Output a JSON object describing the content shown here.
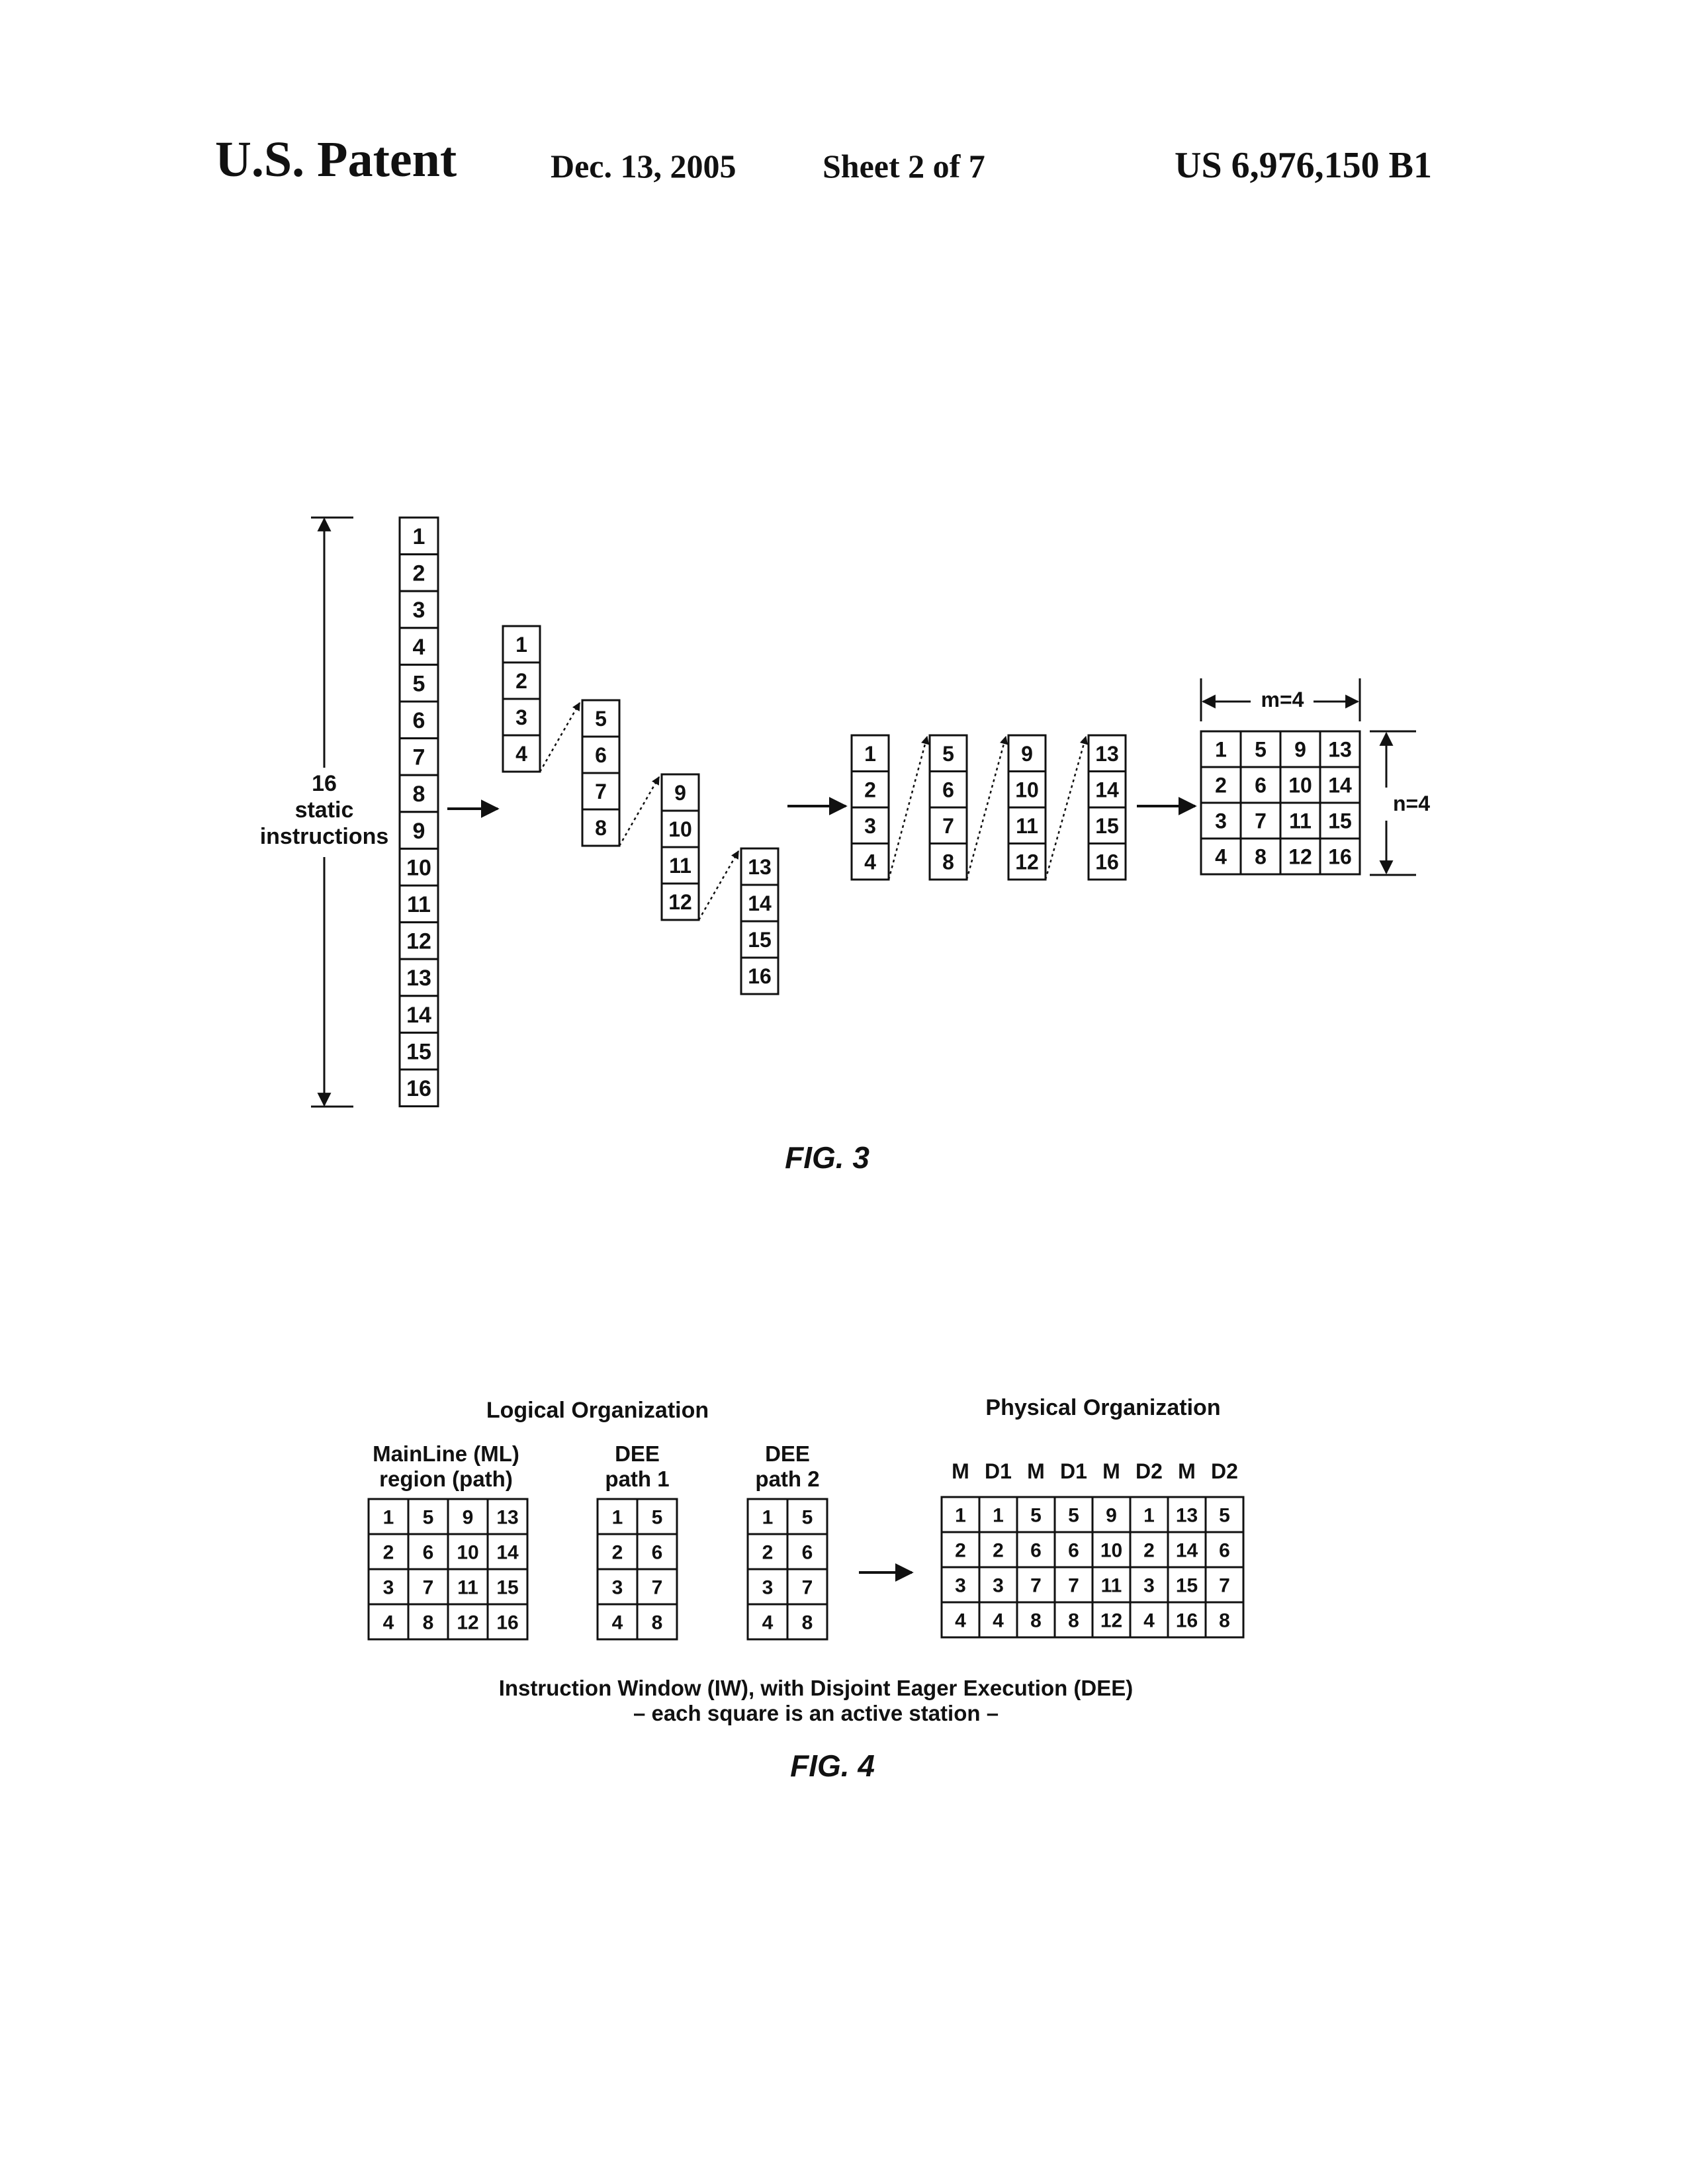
{
  "header": {
    "patent": "U.S. Patent",
    "date": "Dec. 13, 2005",
    "sheet": "Sheet 2 of 7",
    "number": "US 6,976,150 B1"
  },
  "fig3": {
    "caption": "FIG. 3",
    "left_label_line1": "16",
    "left_label_line2": "static",
    "left_label_line3": "instructions",
    "static_column": [
      "1",
      "2",
      "3",
      "4",
      "5",
      "6",
      "7",
      "8",
      "9",
      "10",
      "11",
      "12",
      "13",
      "14",
      "15",
      "16"
    ],
    "staggered_groups": [
      [
        "1",
        "2",
        "3",
        "4"
      ],
      [
        "5",
        "6",
        "7",
        "8"
      ],
      [
        "9",
        "10",
        "11",
        "12"
      ],
      [
        "13",
        "14",
        "15",
        "16"
      ]
    ],
    "aligned_groups": [
      [
        "1",
        "2",
        "3",
        "4"
      ],
      [
        "5",
        "6",
        "7",
        "8"
      ],
      [
        "9",
        "10",
        "11",
        "12"
      ],
      [
        "13",
        "14",
        "15",
        "16"
      ]
    ],
    "matrix": [
      [
        "1",
        "5",
        "9",
        "13"
      ],
      [
        "2",
        "6",
        "10",
        "14"
      ],
      [
        "3",
        "7",
        "11",
        "15"
      ],
      [
        "4",
        "8",
        "12",
        "16"
      ]
    ],
    "m_label": "m=4",
    "n_label": "n=4"
  },
  "fig4": {
    "caption": "FIG. 4",
    "logical_title": "Logical Organization",
    "physical_title": "Physical Organization",
    "mainline_label_1": "MainLine (ML)",
    "mainline_label_2": "region (path)",
    "dee1_label_1": "DEE",
    "dee1_label_2": "path 1",
    "dee2_label_1": "DEE",
    "dee2_label_2": "path 2",
    "mainline_grid": [
      [
        "1",
        "5",
        "9",
        "13"
      ],
      [
        "2",
        "6",
        "10",
        "14"
      ],
      [
        "3",
        "7",
        "11",
        "15"
      ],
      [
        "4",
        "8",
        "12",
        "16"
      ]
    ],
    "dee1_grid": [
      [
        "1",
        "5"
      ],
      [
        "2",
        "6"
      ],
      [
        "3",
        "7"
      ],
      [
        "4",
        "8"
      ]
    ],
    "dee2_grid": [
      [
        "1",
        "5"
      ],
      [
        "2",
        "6"
      ],
      [
        "3",
        "7"
      ],
      [
        "4",
        "8"
      ]
    ],
    "physical_headers": [
      "M",
      "D1",
      "M",
      "D1",
      "M",
      "D2",
      "M",
      "D2"
    ],
    "physical_grid": [
      [
        "1",
        "1",
        "5",
        "5",
        "9",
        "1",
        "13",
        "5"
      ],
      [
        "2",
        "2",
        "6",
        "6",
        "10",
        "2",
        "14",
        "6"
      ],
      [
        "3",
        "3",
        "7",
        "7",
        "11",
        "3",
        "15",
        "7"
      ],
      [
        "4",
        "4",
        "8",
        "8",
        "12",
        "4",
        "16",
        "8"
      ]
    ],
    "footer_line1": "Instruction Window (IW), with Disjoint Eager Execution (DEE)",
    "footer_line2": "– each square is an active station –"
  }
}
